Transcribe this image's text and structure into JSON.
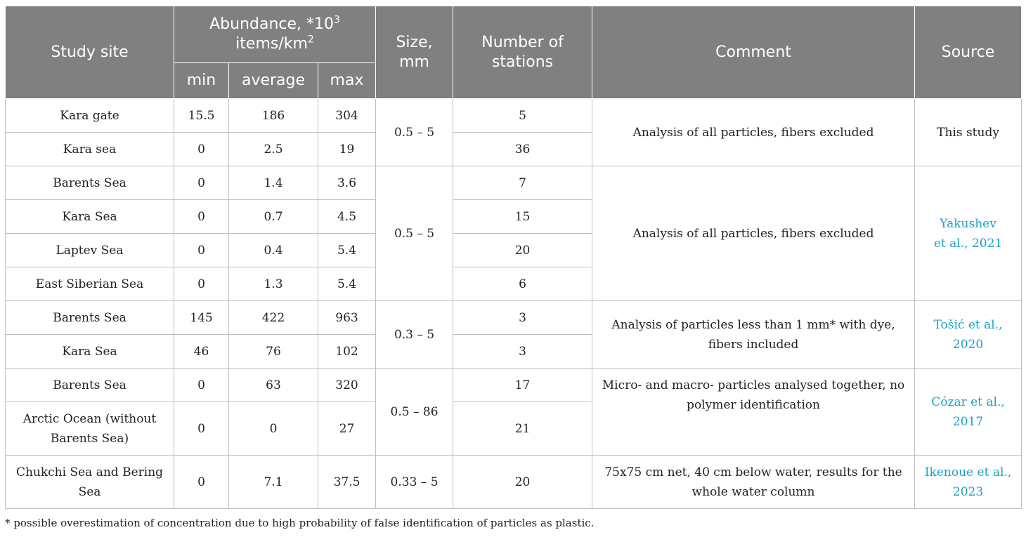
{
  "header": {
    "study_site": "Study site",
    "abundance_text": "Abundance, *10",
    "abundance_exp": "3",
    "abundance_unit_text": "items/km",
    "abundance_unit_exp": "2",
    "min": "min",
    "average": "average",
    "max": "max",
    "size": "Size, mm",
    "stations": "Number of stations",
    "comment": "Comment",
    "source": "Source"
  },
  "rows": [
    {
      "site": "Kara gate",
      "min": "15.5",
      "avg": "186",
      "max": "304",
      "size": "0.5 – 5",
      "stations": "5",
      "comment": "Analysis of all particles, fibers excluded",
      "source": "This study"
    },
    {
      "site": "Kara sea",
      "min": "0",
      "avg": "2.5",
      "max": "19",
      "stations": "36"
    },
    {
      "site": "Barents Sea",
      "min": "0",
      "avg": "1.4",
      "max": "3.6",
      "size": "0.5 – 5",
      "stations": "7",
      "comment": "Analysis of all particles, fibers excluded",
      "source_line1": "Yakushev",
      "source_line2": "et al., 2021"
    },
    {
      "site": "Kara Sea",
      "min": "0",
      "avg": "0.7",
      "max": "4.5",
      "stations": "15"
    },
    {
      "site": "Laptev Sea",
      "min": "0",
      "avg": "0.4",
      "max": "5.4",
      "stations": "20"
    },
    {
      "site": "East Siberian Sea",
      "min": "0",
      "avg": "1.3",
      "max": "5.4",
      "stations": "6"
    },
    {
      "site": "Barents Sea",
      "min": "145",
      "avg": "422",
      "max": "963",
      "size": "0.3 – 5",
      "stations": "3",
      "comment_line1": "Analysis of particles less than 1 mm* with dye,",
      "comment_line2": "fibers included",
      "source_line1": "Tošić et al.,",
      "source_line2": "2020"
    },
    {
      "site": "Kara Sea",
      "min": "46",
      "avg": "76",
      "max": "102",
      "stations": "3"
    },
    {
      "site": "Barents Sea",
      "min": "0",
      "avg": "63",
      "max": "320",
      "size": "0.5 – 86",
      "stations": "17",
      "comment_line1": "Micro- and macro- particles analysed together, no",
      "comment_line2": "polymer identification",
      "source_line1": "Cózar et al.,",
      "source_line2": "2017"
    },
    {
      "site_line1": "Arctic Ocean (without",
      "site_line2": "Barents Sea)",
      "min": "0",
      "avg": "0",
      "max": "27",
      "stations": "21"
    },
    {
      "site_line1": "Chukchi Sea and Bering",
      "site_line2": "Sea",
      "min": "0",
      "avg": "7.1",
      "max": "37.5",
      "size": "0.33 – 5",
      "stations": "20",
      "comment_line1": "75x75 cm net, 40 cm below water, results for the",
      "comment_line2": "whole water column",
      "source_line1": "Ikenoue et al.,",
      "source_line2": "2023"
    }
  ],
  "footnote": "* possible overestimation of concentration due to high probability of false identification of particles as plastic.",
  "colors": {
    "header_bg": "#808080",
    "link": "#1aa1c6",
    "border": "#bfbfbf"
  }
}
